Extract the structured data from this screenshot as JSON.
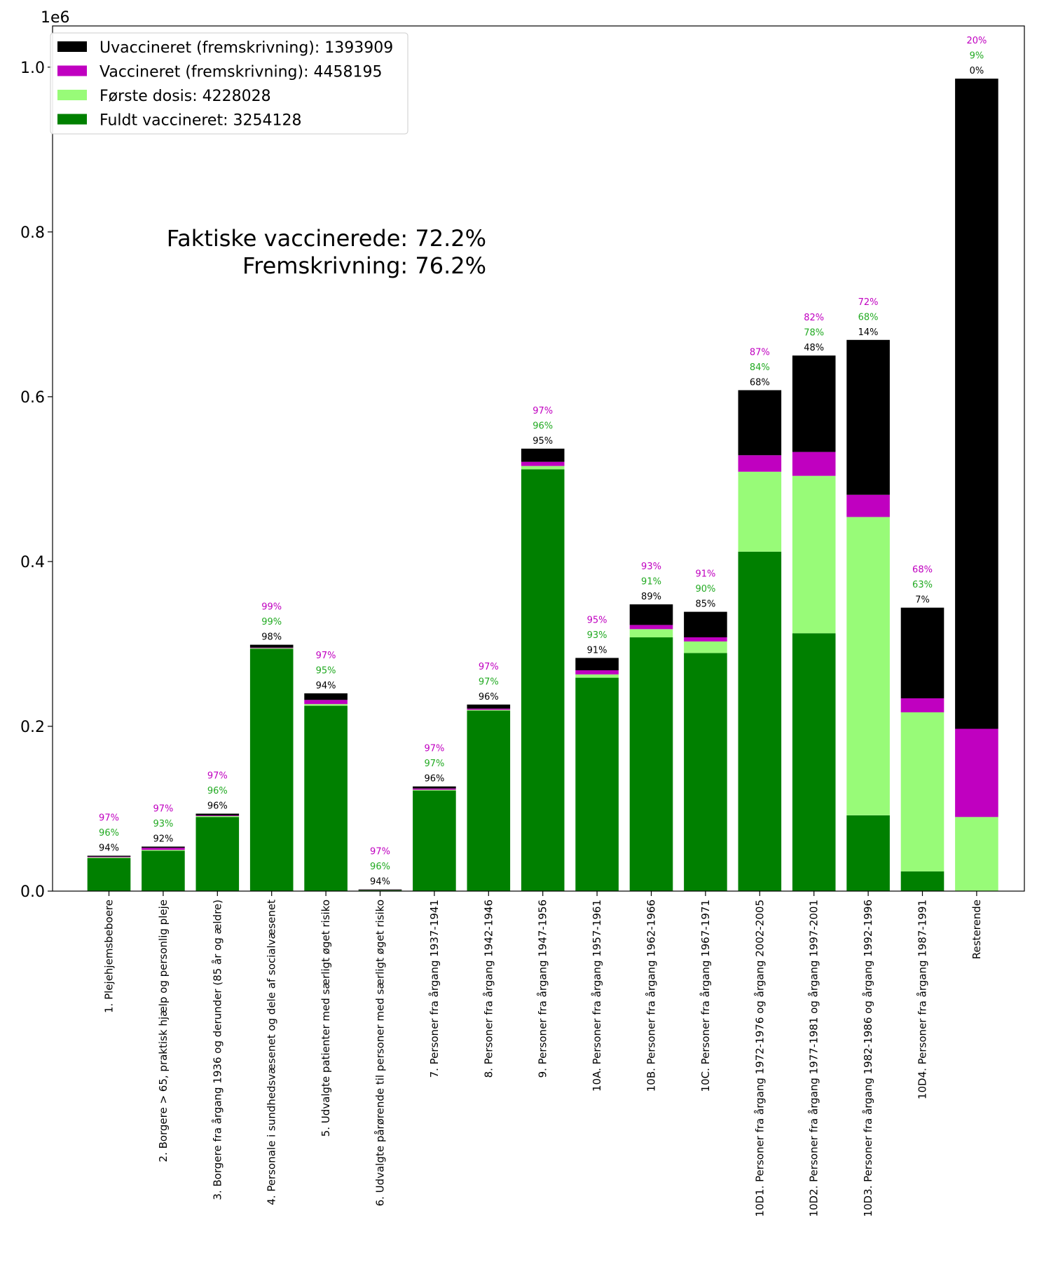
{
  "chart_data": {
    "type": "bar",
    "stacked": true,
    "scale_label": "1e6",
    "ylim": [
      0,
      1.05
    ],
    "yticks": [
      "0.0",
      "0.2",
      "0.4",
      "0.6",
      "0.8",
      "1.0"
    ],
    "ytick_values": [
      0,
      0.2,
      0.4,
      0.6,
      0.8,
      1.0
    ],
    "annotation": [
      "Faktiske vaccinerede: 72.2%",
      "Fremskrivning: 76.2%"
    ],
    "legend": [
      {
        "label": "Uvaccineret (fremskrivning):  1393909",
        "color": "#000000"
      },
      {
        "label": "Vaccineret (fremskrivning):  4458195",
        "color": "#c000c0"
      },
      {
        "label": "Første dosis:  4228028",
        "color": "#98fb78"
      },
      {
        "label": "Fuldt vaccineret:  3254128",
        "color": "#008000"
      }
    ],
    "colors": {
      "fuldt": "#008000",
      "forste": "#98fb78",
      "vacc": "#c000c0",
      "uvacc": "#000000",
      "pct_vacc": "#c000c0",
      "pct_forste": "#22aa22",
      "pct_fuldt": "#000000"
    },
    "categories": [
      "1. Plejehjemsbeboere",
      "2. Borgere > 65, praktisk hjælp og personlig pleje",
      "3. Borgere fra årgang 1936 og derunder (85 år og ældre)",
      "4. Personale i sundhedsvæsenet og dele af socialvæsenet",
      "5. Udvalgte patienter med særligt øget risiko",
      "6. Udvalgte pårørende til personer med særligt øget risiko",
      "7. Personer fra årgang 1937-1941",
      "8. Personer fra årgang 1942-1946",
      "9. Personer fra årgang 1947-1956",
      "10A. Personer fra årgang 1957-1961",
      "10B. Personer fra årgang 1962-1966",
      "10C. Personer fra årgang 1967-1971",
      "10D1. Personer fra årgang 1972-1976 og årgang 2002-2005",
      "10D2. Personer fra årgang 1977-1981 og årgang 1997-2001",
      "10D3. Personer fra årgang 1982-1986 og årgang 1992-1996",
      "10D4. Personer fra årgang 1987-1991",
      "Resterende"
    ],
    "series": [
      {
        "name": "Fuldt vaccineret",
        "values": [
          0.04,
          0.049,
          0.09,
          0.294,
          0.225,
          0.0015,
          0.122,
          0.219,
          0.512,
          0.259,
          0.308,
          0.289,
          0.412,
          0.313,
          0.092,
          0.024,
          0.0
        ]
      },
      {
        "name": "Første dosis",
        "values": [
          0.001,
          0.001,
          0.001,
          0.001,
          0.002,
          0.0002,
          0.001,
          0.001,
          0.004,
          0.004,
          0.01,
          0.014,
          0.097,
          0.191,
          0.362,
          0.193,
          0.09
        ]
      },
      {
        "name": "Vaccineret (fremskrivning)",
        "values": [
          0.0008,
          0.0025,
          0.0008,
          0.0005,
          0.005,
          0.0002,
          0.0015,
          0.0015,
          0.005,
          0.005,
          0.005,
          0.005,
          0.02,
          0.029,
          0.027,
          0.017,
          0.107
        ]
      },
      {
        "name": "Uvaccineret (fremskrivning)",
        "values": [
          0.0012,
          0.0015,
          0.0022,
          0.0035,
          0.008,
          0.0001,
          0.0025,
          0.0049,
          0.016,
          0.015,
          0.025,
          0.031,
          0.079,
          0.117,
          0.188,
          0.11,
          0.789
        ]
      }
    ],
    "pct_labels": {
      "vaccineret": [
        "97%",
        "97%",
        "97%",
        "99%",
        "97%",
        "97%",
        "97%",
        "97%",
        "97%",
        "95%",
        "93%",
        "91%",
        "87%",
        "82%",
        "72%",
        "68%",
        "20%"
      ],
      "forste": [
        "96%",
        "93%",
        "96%",
        "99%",
        "95%",
        "96%",
        "97%",
        "97%",
        "96%",
        "93%",
        "91%",
        "90%",
        "84%",
        "78%",
        "68%",
        "63%",
        "9%"
      ],
      "fuldt": [
        "94%",
        "92%",
        "96%",
        "98%",
        "94%",
        "94%",
        "96%",
        "96%",
        "95%",
        "91%",
        "89%",
        "85%",
        "68%",
        "48%",
        "14%",
        "7%",
        "0%"
      ]
    },
    "grid": false,
    "legend_position": "top-left"
  }
}
